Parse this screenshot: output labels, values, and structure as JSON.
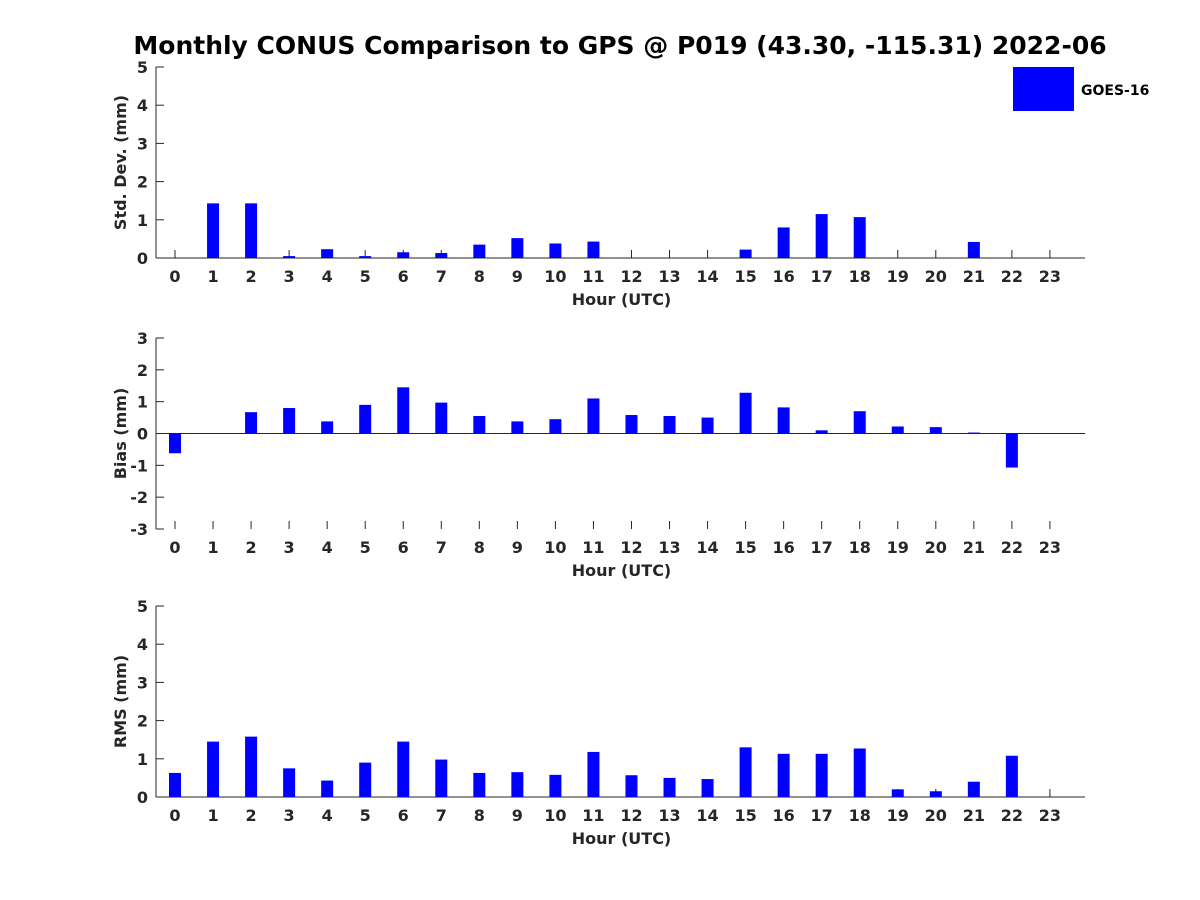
{
  "title": "Monthly CONUS Comparison to GPS @ P019 (43.30, -115.31) 2022-06",
  "legend": {
    "label": "GOES-16",
    "color": "#0000ff"
  },
  "chart_data": [
    {
      "type": "bar",
      "title": "Monthly CONUS Comparison to GPS @ P019 (43.30, -115.31) 2022-06",
      "xlabel": "Hour (UTC)",
      "ylabel": "Std. Dev. (mm)",
      "ylim": [
        0,
        5
      ],
      "yticks": [
        "0",
        "1",
        "2",
        "3",
        "4",
        "5"
      ],
      "categories": [
        "0",
        "1",
        "2",
        "3",
        "4",
        "5",
        "6",
        "7",
        "8",
        "9",
        "10",
        "11",
        "12",
        "13",
        "14",
        "15",
        "16",
        "17",
        "18",
        "19",
        "20",
        "21",
        "22",
        "23"
      ],
      "series": [
        {
          "name": "GOES-16",
          "color": "#0000ff",
          "values": [
            0,
            1.43,
            1.43,
            0.05,
            0.23,
            0.05,
            0.15,
            0.13,
            0.35,
            0.52,
            0.38,
            0.43,
            0,
            0,
            0,
            0.22,
            0.8,
            1.15,
            1.07,
            0,
            0,
            0.42,
            0,
            0
          ]
        }
      ]
    },
    {
      "type": "bar",
      "xlabel": "Hour (UTC)",
      "ylabel": "Bias (mm)",
      "ylim": [
        -3,
        3
      ],
      "yticks": [
        "-3",
        "-2",
        "-1",
        "0",
        "1",
        "2",
        "3"
      ],
      "categories": [
        "0",
        "1",
        "2",
        "3",
        "4",
        "5",
        "6",
        "7",
        "8",
        "9",
        "10",
        "11",
        "12",
        "13",
        "14",
        "15",
        "16",
        "17",
        "18",
        "19",
        "20",
        "21",
        "22",
        "23"
      ],
      "series": [
        {
          "name": "GOES-16",
          "color": "#0000ff",
          "values": [
            -0.62,
            0,
            0.67,
            0.8,
            0.38,
            0.9,
            1.45,
            0.97,
            0.55,
            0.38,
            0.45,
            1.1,
            0.58,
            0.55,
            0.5,
            1.28,
            0.82,
            0.1,
            0.7,
            0.22,
            0.2,
            0.03,
            -1.07,
            0
          ]
        }
      ]
    },
    {
      "type": "bar",
      "xlabel": "Hour (UTC)",
      "ylabel": "RMS (mm)",
      "ylim": [
        0,
        5
      ],
      "yticks": [
        "0",
        "1",
        "2",
        "3",
        "4",
        "5"
      ],
      "categories": [
        "0",
        "1",
        "2",
        "3",
        "4",
        "5",
        "6",
        "7",
        "8",
        "9",
        "10",
        "11",
        "12",
        "13",
        "14",
        "15",
        "16",
        "17",
        "18",
        "19",
        "20",
        "21",
        "22",
        "23"
      ],
      "series": [
        {
          "name": "GOES-16",
          "color": "#0000ff",
          "values": [
            0.63,
            1.45,
            1.58,
            0.75,
            0.43,
            0.9,
            1.45,
            0.98,
            0.63,
            0.65,
            0.58,
            1.18,
            0.57,
            0.5,
            0.47,
            1.3,
            1.13,
            1.13,
            1.27,
            0.2,
            0.15,
            0.4,
            1.08,
            0
          ]
        }
      ]
    }
  ]
}
